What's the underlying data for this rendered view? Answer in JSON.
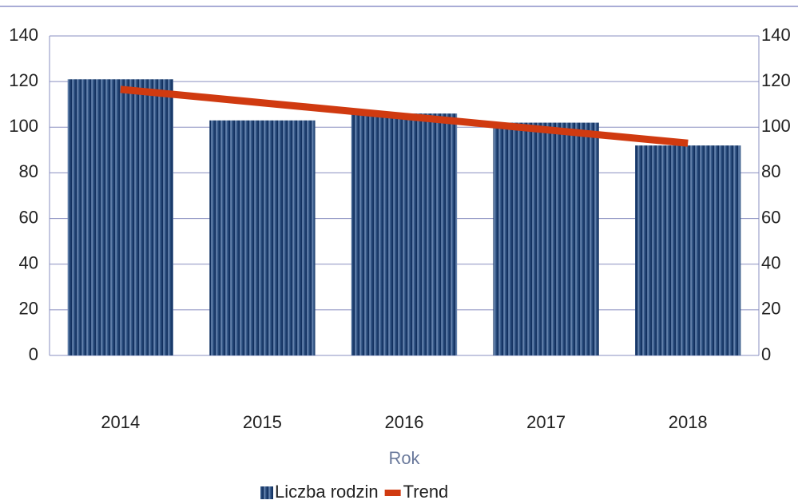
{
  "chart_data": {
    "type": "bar",
    "x_label": "Rok",
    "categories": [
      "2014",
      "2015",
      "2016",
      "2017",
      "2018"
    ],
    "series": [
      {
        "name": "Liczba rodzin",
        "type": "bar",
        "color": "#1b3f70",
        "values": [
          121,
          103,
          106,
          102,
          92
        ]
      },
      {
        "name": "Trend",
        "type": "line",
        "color": "#d03a10",
        "axis": "y2",
        "values": [
          116.6,
          110.7,
          104.8,
          98.9,
          93.0
        ]
      }
    ],
    "ylim": [
      0,
      140
    ],
    "yticks": [
      0,
      20,
      40,
      60,
      80,
      100,
      120,
      140
    ],
    "y2lim": [
      0,
      140
    ],
    "y2ticks": [
      0,
      20,
      40,
      60,
      80,
      100,
      120,
      140
    ],
    "grid": true,
    "legend": "bottom"
  }
}
